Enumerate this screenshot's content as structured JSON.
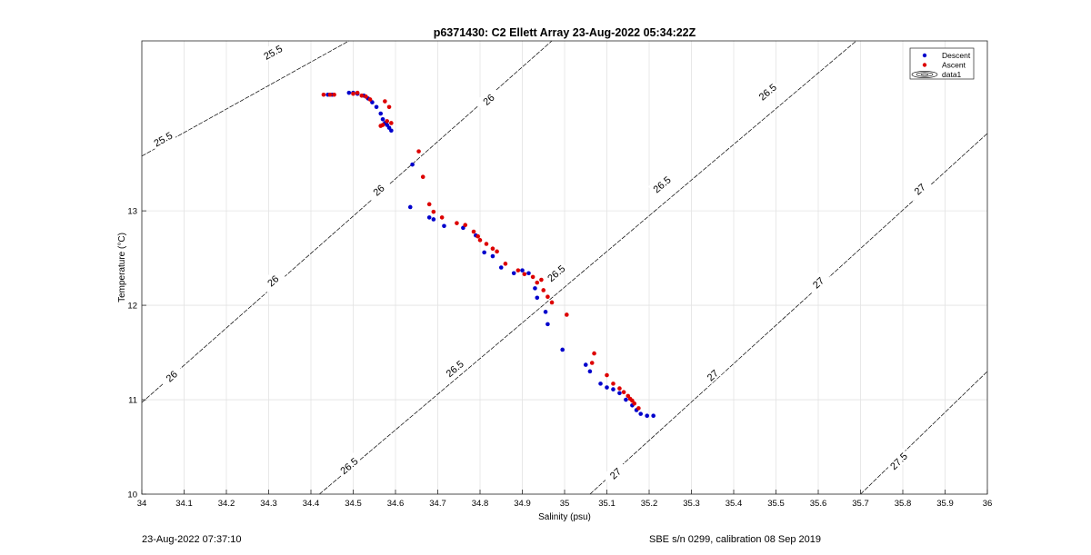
{
  "chart_data": {
    "type": "scatter",
    "title": "p6371430: C2 Ellett Array 23-Aug-2022 05:34:22Z",
    "xlabel": "Salinity (psu)",
    "ylabel": "Temperature (°C)",
    "xlim": [
      34,
      36
    ],
    "ylim": [
      10,
      14
    ],
    "x_ticks": [
      "34",
      "34.1",
      "34.2",
      "34.3",
      "34.4",
      "34.5",
      "34.6",
      "34.7",
      "34.8",
      "34.9",
      "35",
      "35.1",
      "35.2",
      "35.3",
      "35.4",
      "35.5",
      "35.6",
      "35.7",
      "35.8",
      "35.9",
      "36"
    ],
    "y_ticks": [
      "10",
      "11",
      "12",
      "13"
    ],
    "grid": true,
    "legend_position": "top-right",
    "legend": [
      "Descent",
      "Ascent",
      "data1"
    ],
    "colors": {
      "descent": "#0000cc",
      "ascent": "#dd0000",
      "contour": "#000000",
      "grid": "#e3e3e3"
    },
    "contours": [
      {
        "label": "25.5",
        "x": [
          34.0,
          34.49
        ],
        "y": [
          13.58,
          14.8
        ],
        "labels": [
          {
            "x": 34.31,
            "y": 14.68
          },
          {
            "x": 34.05,
            "y": 13.76
          }
        ]
      },
      {
        "label": "26",
        "x": [
          34.0,
          34.97
        ],
        "y": [
          10.97,
          14.8
        ],
        "labels": [
          {
            "x": 34.82,
            "y": 14.18
          },
          {
            "x": 34.56,
            "y": 13.22
          },
          {
            "x": 34.31,
            "y": 12.26
          },
          {
            "x": 34.07,
            "y": 11.25
          }
        ]
      },
      {
        "label": "26.5",
        "x": [
          34.42,
          35.69
        ],
        "y": [
          10.0,
          14.8
        ],
        "labels": [
          {
            "x": 35.48,
            "y": 14.26
          },
          {
            "x": 35.23,
            "y": 13.28
          },
          {
            "x": 34.98,
            "y": 12.34
          },
          {
            "x": 34.74,
            "y": 11.33
          },
          {
            "x": 34.49,
            "y": 10.3
          }
        ]
      },
      {
        "label": "27",
        "x": [
          35.06,
          36.0
        ],
        "y": [
          10.0,
          13.82
        ],
        "labels": [
          {
            "x": 35.84,
            "y": 13.23
          },
          {
            "x": 35.6,
            "y": 12.24
          },
          {
            "x": 35.35,
            "y": 11.26
          },
          {
            "x": 35.12,
            "y": 10.22
          }
        ]
      },
      {
        "label": "27.5",
        "x": [
          35.7,
          36.0
        ],
        "y": [
          10.0,
          11.3
        ],
        "labels": [
          {
            "x": 35.79,
            "y": 10.35
          }
        ]
      }
    ],
    "series": [
      {
        "name": "Descent",
        "x": [
          34.44,
          34.45,
          34.49,
          34.5,
          34.51,
          34.525,
          34.535,
          34.545,
          34.555,
          34.565,
          34.57,
          34.575,
          34.58,
          34.585,
          34.59,
          34.64,
          34.635,
          34.68,
          34.69,
          34.715,
          34.76,
          34.79,
          34.81,
          34.83,
          34.85,
          34.88,
          34.9,
          34.915,
          34.93,
          34.935,
          34.955,
          34.96,
          34.995,
          35.05,
          35.06,
          35.085,
          35.1,
          35.115,
          35.13,
          35.145,
          35.16,
          35.17,
          35.18,
          35.195,
          35.21
        ],
        "y": [
          14.23,
          14.23,
          14.25,
          14.25,
          14.24,
          14.22,
          14.19,
          14.15,
          14.1,
          14.03,
          13.97,
          13.93,
          13.91,
          13.88,
          13.85,
          13.49,
          13.04,
          12.93,
          12.91,
          12.84,
          12.82,
          12.74,
          12.56,
          12.52,
          12.4,
          12.34,
          12.37,
          12.34,
          12.18,
          12.08,
          11.93,
          11.8,
          11.53,
          11.37,
          11.3,
          11.17,
          11.13,
          11.11,
          11.07,
          11.0,
          10.94,
          10.89,
          10.85,
          10.83,
          10.83
        ]
      },
      {
        "name": "Ascent",
        "x": [
          34.43,
          34.445,
          34.455,
          34.5,
          34.51,
          34.52,
          34.53,
          34.54,
          34.565,
          34.57,
          34.575,
          34.58,
          34.585,
          34.59,
          34.655,
          34.665,
          34.68,
          34.69,
          34.71,
          34.745,
          34.765,
          34.785,
          34.795,
          34.8,
          34.815,
          34.83,
          34.84,
          34.86,
          34.89,
          34.905,
          34.925,
          34.935,
          34.945,
          34.95,
          34.96,
          34.97,
          35.005,
          35.065,
          35.07,
          35.1,
          35.115,
          35.13,
          35.14,
          35.15,
          35.155,
          35.16,
          35.165,
          35.175
        ],
        "y": [
          14.23,
          14.23,
          14.23,
          14.24,
          14.25,
          14.22,
          14.21,
          14.18,
          13.9,
          13.91,
          14.16,
          13.95,
          14.1,
          13.93,
          13.63,
          13.36,
          13.07,
          12.99,
          12.93,
          12.87,
          12.85,
          12.78,
          12.73,
          12.69,
          12.65,
          12.6,
          12.57,
          12.44,
          12.37,
          12.33,
          12.3,
          12.24,
          12.27,
          12.16,
          12.09,
          12.03,
          11.9,
          11.39,
          11.49,
          11.26,
          11.17,
          11.12,
          11.08,
          11.04,
          11.01,
          10.99,
          10.96,
          10.91
        ]
      }
    ]
  },
  "footer": {
    "left": "23-Aug-2022 07:37:10",
    "right": "SBE s/n 0299, calibration 08 Sep 2019"
  }
}
